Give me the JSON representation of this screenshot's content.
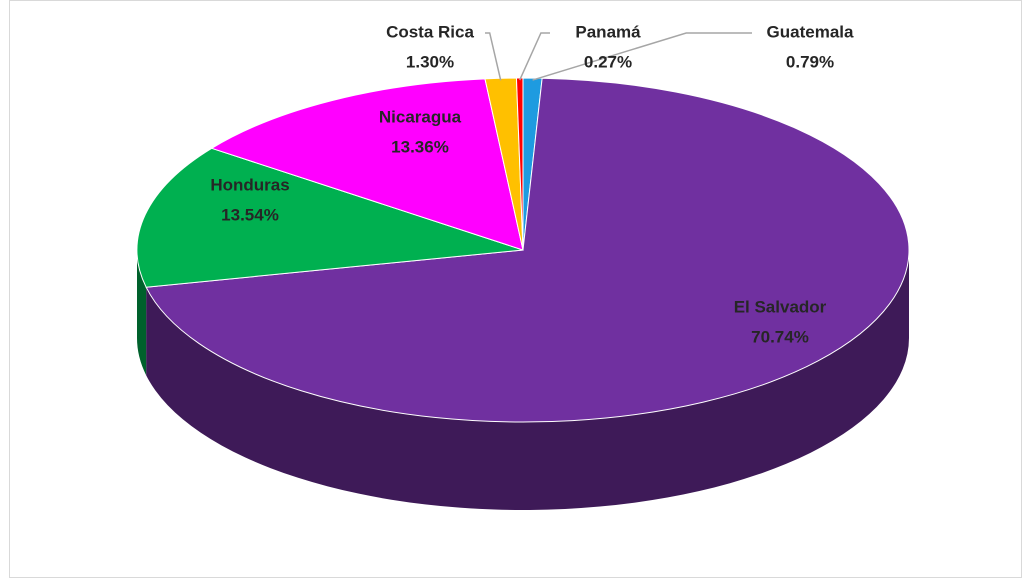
{
  "chart_data": {
    "type": "pie",
    "categories": [
      "Guatemala",
      "El Salvador",
      "Honduras",
      "Nicaragua",
      "Costa Rica",
      "Panamá"
    ],
    "values": [
      0.79,
      70.74,
      13.54,
      13.36,
      1.3,
      0.27
    ],
    "value_labels": [
      "0.79%",
      "70.74%",
      "13.54%",
      "13.36%",
      "1.30%",
      "0.27%"
    ],
    "colors": [
      "#1e9be0",
      "#7030a0",
      "#00b050",
      "#ff00ff",
      "#ffc000",
      "#ff0000"
    ]
  }
}
